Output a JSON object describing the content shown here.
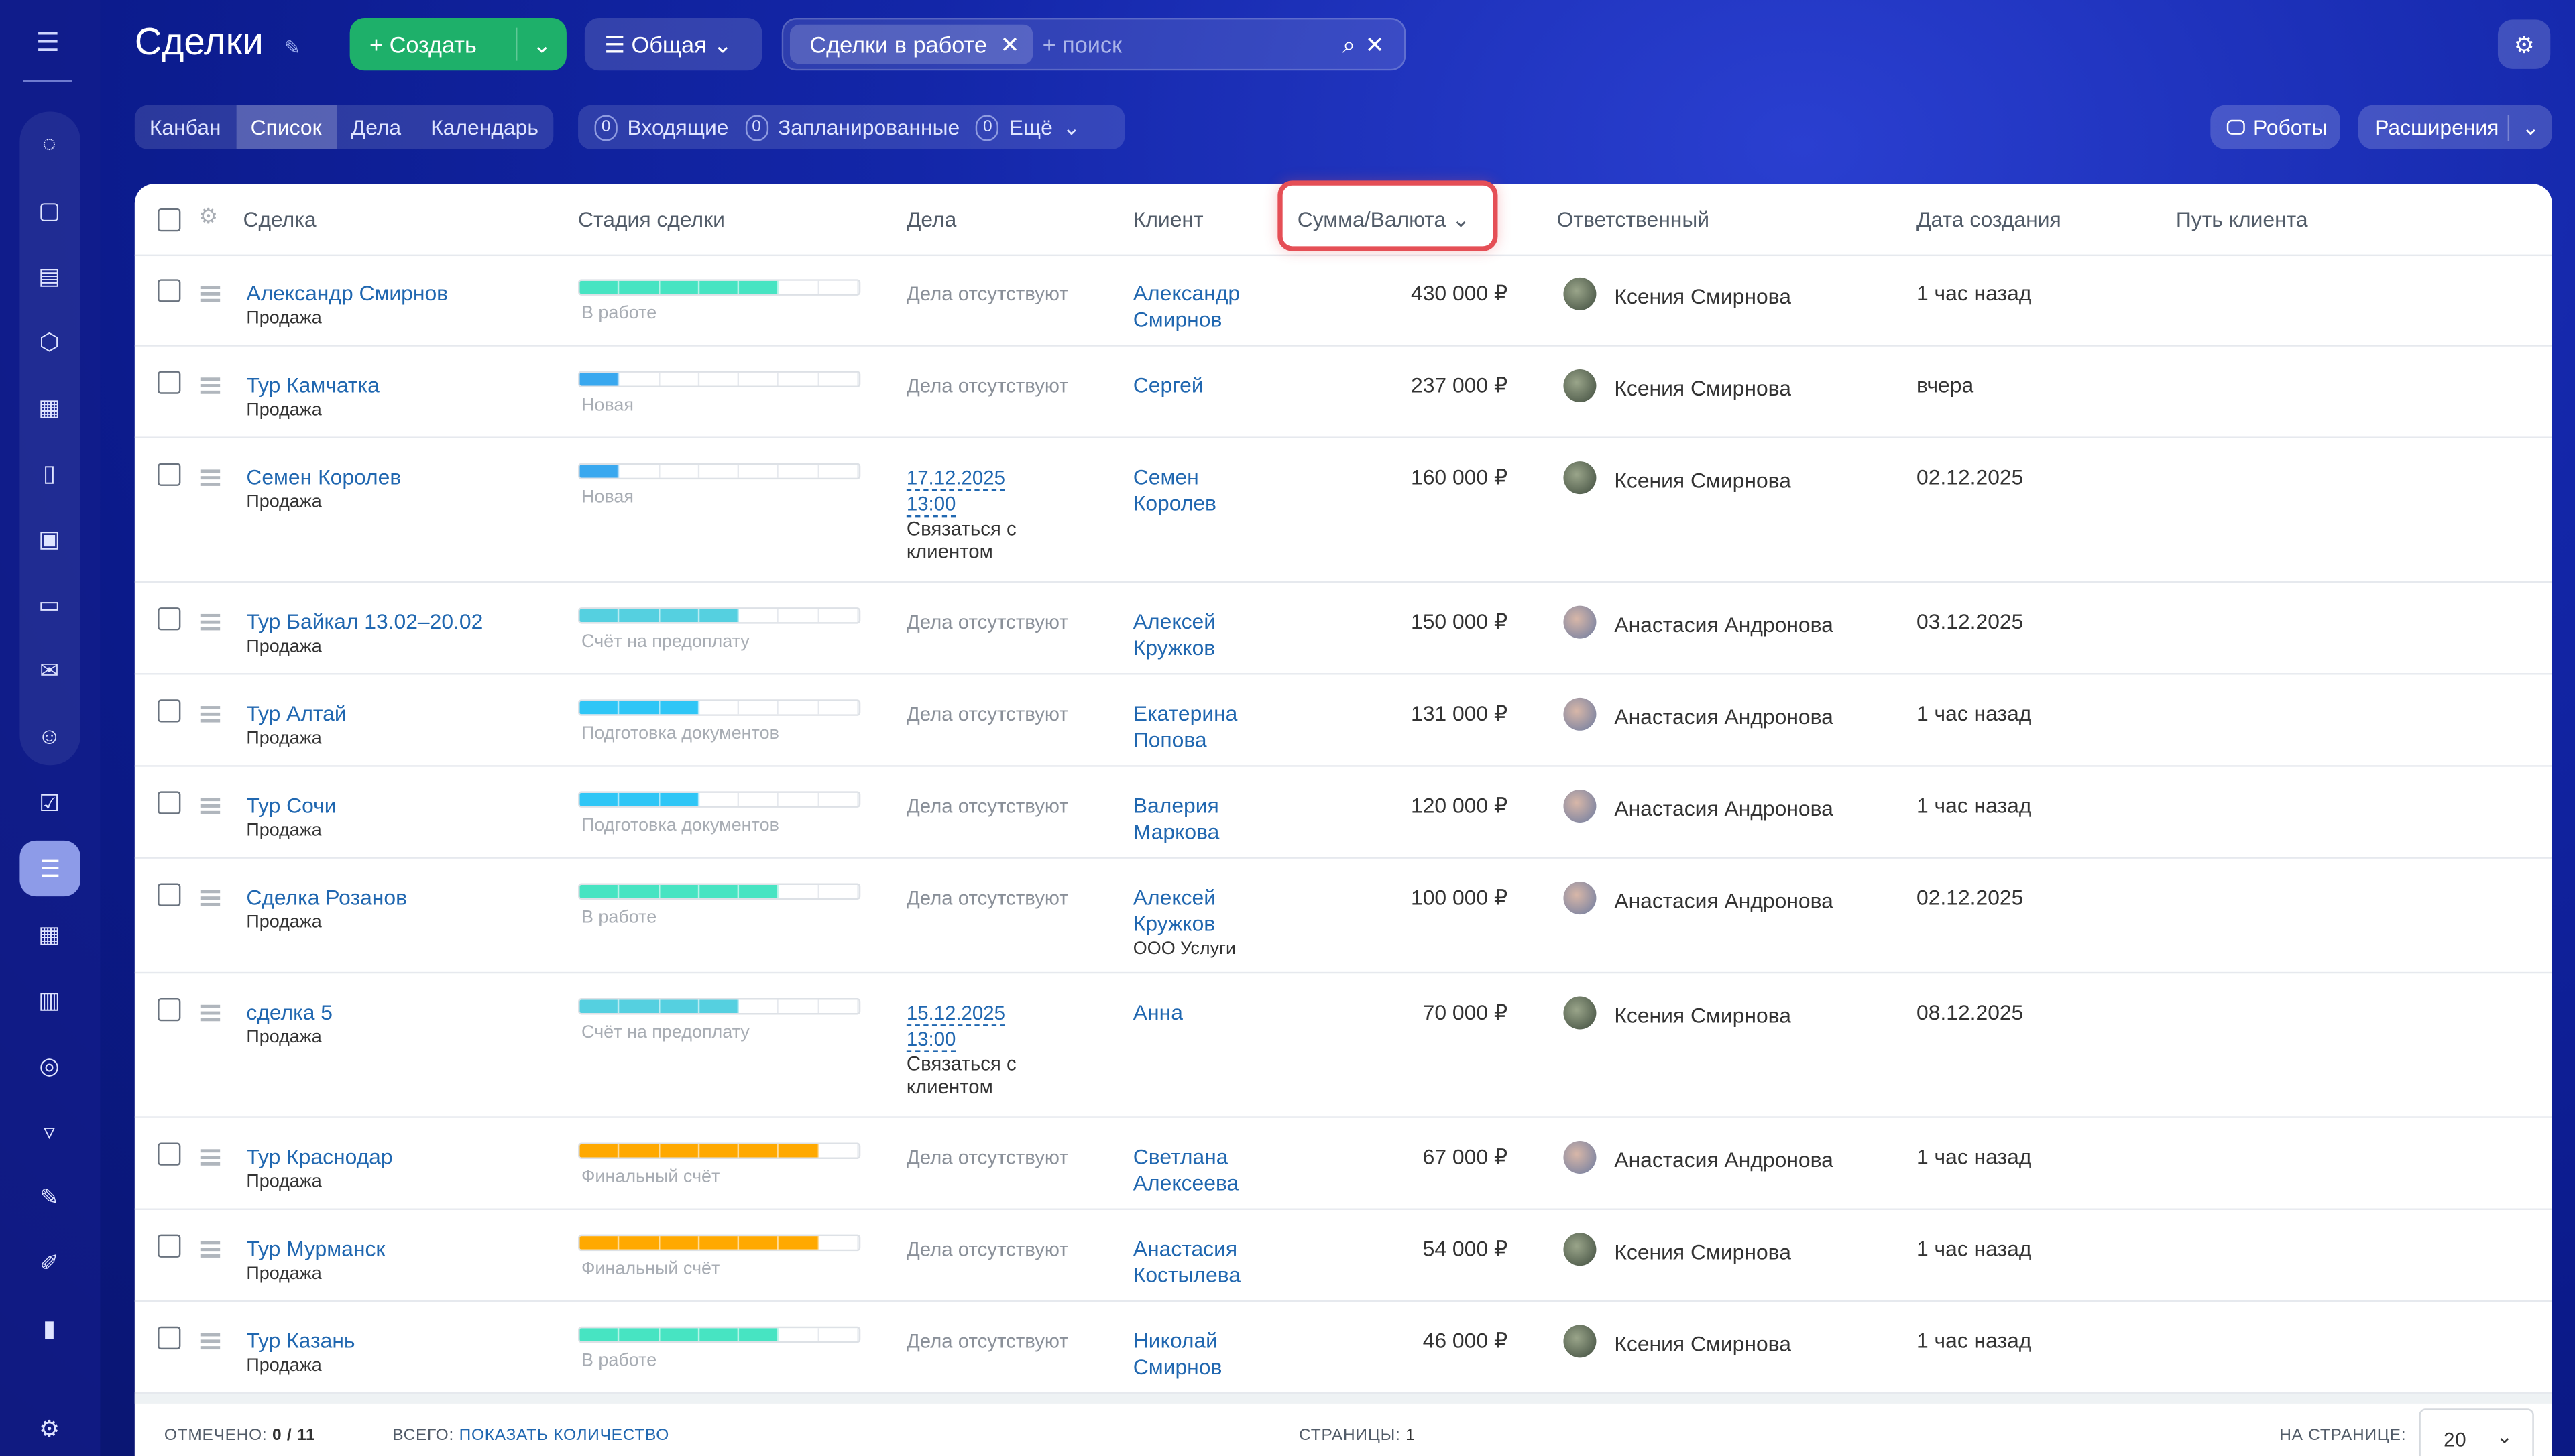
{
  "header": {
    "title": "Сделки",
    "create": "+ Создать",
    "general": "Общая",
    "filter_chip": "Сделки в работе",
    "search_placeholder": "+ поиск",
    "robots": "Роботы",
    "extensions": "Расширения"
  },
  "views": [
    "Канбан",
    "Список",
    "Дела",
    "Календарь"
  ],
  "counters": [
    {
      "n": "0",
      "label": "Входящие"
    },
    {
      "n": "0",
      "label": "Запланированные"
    },
    {
      "n": "0",
      "label": "Ещё"
    }
  ],
  "columns": {
    "deal": "Сделка",
    "stage": "Стадия сделки",
    "tasks": "Дела",
    "client": "Клиент",
    "sum": "Сумма/Валюта",
    "responsible": "Ответственный",
    "created": "Дата создания",
    "path": "Путь клиента"
  },
  "colors": {
    "work": "#47e4c2",
    "new": "#39a8ef",
    "prepay": "#55d0e0",
    "docs": "#2fc6f6",
    "final": "#ffa900"
  },
  "rows": [
    {
      "name": "Александр Смирнов",
      "type": "Продажа",
      "stage": "В работе",
      "stage_fill": 5,
      "stage_color": "work",
      "tasks": "Дела отсутствуют",
      "client": "Александр Смирнов",
      "sum": "430 000 ₽",
      "resp": "Ксения Смирнова",
      "created": "1 час назад"
    },
    {
      "name": "Тур Камчатка",
      "type": "Продажа",
      "stage": "Новая",
      "stage_fill": 1,
      "stage_color": "new",
      "tasks": "Дела отсутствуют",
      "client": "Сергей",
      "sum": "237 000 ₽",
      "resp": "Ксения Смирнова",
      "created": "вчера"
    },
    {
      "name": "Семен Королев",
      "type": "Продажа",
      "stage": "Новая",
      "stage_fill": 1,
      "stage_color": "new",
      "task_date": "17.12.2025",
      "task_time": "13:00",
      "task_text": "Связаться с клиентом",
      "client": "Семен Королев",
      "sum": "160 000 ₽",
      "resp": "Ксения Смирнова",
      "created": "02.12.2025"
    },
    {
      "name": "Тур Байкал 13.02–20.02",
      "type": "Продажа",
      "stage": "Счёт на предоплату",
      "stage_fill": 4,
      "stage_color": "prepay",
      "tasks": "Дела отсутствуют",
      "client": "Алексей Кружков",
      "sum": "150 000 ₽",
      "resp": "Анастасия Андронова",
      "created": "03.12.2025"
    },
    {
      "name": "Тур Алтай",
      "type": "Продажа",
      "stage": "Подготовка документов",
      "stage_fill": 3,
      "stage_color": "docs",
      "tasks": "Дела отсутствуют",
      "client": "Екатерина Попова",
      "sum": "131 000 ₽",
      "resp": "Анастасия Андронова",
      "created": "1 час назад"
    },
    {
      "name": "Тур Сочи",
      "type": "Продажа",
      "stage": "Подготовка документов",
      "stage_fill": 3,
      "stage_color": "docs",
      "tasks": "Дела отсутствуют",
      "client": "Валерия Маркова",
      "sum": "120 000 ₽",
      "resp": "Анастасия Андронова",
      "created": "1 час назад"
    },
    {
      "name": "Сделка Розанов",
      "type": "Продажа",
      "stage": "В работе",
      "stage_fill": 5,
      "stage_color": "work",
      "tasks": "Дела отсутствуют",
      "client": "Алексей Кружков",
      "client_company": "ООО Услуги",
      "sum": "100 000 ₽",
      "resp": "Анастасия Андронова",
      "created": "02.12.2025"
    },
    {
      "name": "сделка 5",
      "type": "Продажа",
      "stage": "Счёт на предоплату",
      "stage_fill": 4,
      "stage_color": "prepay",
      "task_date": "15.12.2025",
      "task_time": "13:00",
      "task_text": "Связаться с клиентом",
      "client": "Анна",
      "sum": "70 000 ₽",
      "resp": "Ксения Смирнова",
      "created": "08.12.2025"
    },
    {
      "name": "Тур Краснодар",
      "type": "Продажа",
      "stage": "Финальный счёт",
      "stage_fill": 6,
      "stage_color": "final",
      "tasks": "Дела отсутствуют",
      "client": "Светлана Алексеева",
      "sum": "67 000 ₽",
      "resp": "Анастасия Андронова",
      "created": "1 час назад"
    },
    {
      "name": "Тур Мурманск",
      "type": "Продажа",
      "stage": "Финальный счёт",
      "stage_fill": 6,
      "stage_color": "final",
      "tasks": "Дела отсутствуют",
      "client": "Анастасия Костылева",
      "sum": "54 000 ₽",
      "resp": "Ксения Смирнова",
      "created": "1 час назад"
    },
    {
      "name": "Тур Казань",
      "type": "Продажа",
      "stage": "В работе",
      "stage_fill": 5,
      "stage_color": "work",
      "tasks": "Дела отсутствуют",
      "client": "Николай Смирнов",
      "sum": "46 000 ₽",
      "resp": "Ксения Смирнова",
      "created": "1 час назад"
    }
  ],
  "footer": {
    "selected_label": "ОТМЕЧЕНО:",
    "selected": "0 / 11",
    "total_label": "ВСЕГО:",
    "show_count": "ПОКАЗАТЬ КОЛИЧЕСТВО",
    "pages_label": "СТРАНИЦЫ:",
    "pages": "1",
    "per_page_label": "НА СТРАНИЦЕ:",
    "per_page": "20"
  }
}
